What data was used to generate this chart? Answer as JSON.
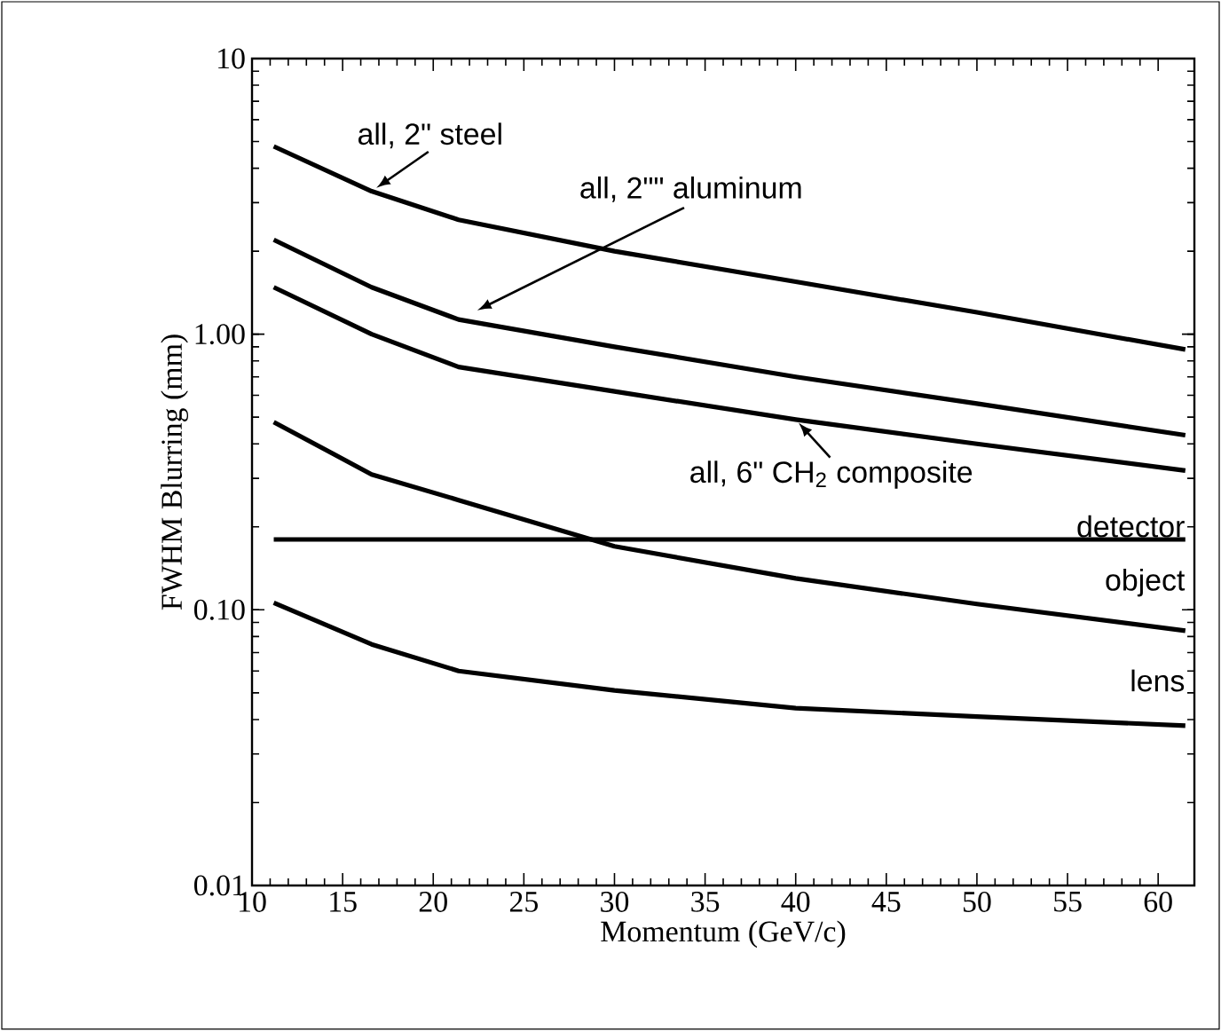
{
  "chart_data": {
    "type": "line",
    "xlabel": "Momentum (GeV/c)",
    "ylabel": "FWHM Blurring (mm)",
    "log": "y",
    "xlim": [
      10,
      62
    ],
    "xticks": [
      10,
      15,
      20,
      25,
      30,
      35,
      40,
      45,
      50,
      55,
      60
    ],
    "ylim": [
      0.01,
      10
    ],
    "yticks": [
      {
        "value": 0.01,
        "label": "0.01"
      },
      {
        "value": 0.1,
        "label": "0.10"
      },
      {
        "value": 1,
        "label": "1.00"
      },
      {
        "value": 10,
        "label": "10"
      }
    ],
    "line_style": "solid",
    "marker": "none",
    "legend": "right",
    "x": [
      11.2,
      16.6,
      21.4,
      30,
      40,
      50,
      61.5
    ],
    "series": [
      {
        "name": "all, 2\" steel",
        "color": "#000000",
        "values": [
          4.8,
          3.3,
          2.6,
          2.0,
          1.55,
          1.2,
          0.88
        ]
      },
      {
        "name": "all, 2\"\" aluminum",
        "color": "#000000",
        "values": [
          2.2,
          1.48,
          1.13,
          0.9,
          0.7,
          0.56,
          0.43
        ]
      },
      {
        "name": "all, 6\" CH$_{2}$ composite",
        "color": "#000000",
        "values": [
          1.48,
          1.0,
          0.76,
          0.62,
          0.49,
          0.4,
          0.32
        ]
      },
      {
        "name": "detector",
        "color": "#000000",
        "values": [
          0.18,
          0.18,
          0.18,
          0.18,
          0.18,
          0.18,
          0.18
        ]
      },
      {
        "name": "object",
        "color": "#000000",
        "values": [
          0.48,
          0.31,
          0.25,
          0.17,
          0.13,
          0.105,
          0.084
        ]
      },
      {
        "name": "lens",
        "color": "#000000",
        "values": [
          0.106,
          0.075,
          0.06,
          0.051,
          0.044,
          0.041,
          0.038
        ]
      }
    ]
  }
}
